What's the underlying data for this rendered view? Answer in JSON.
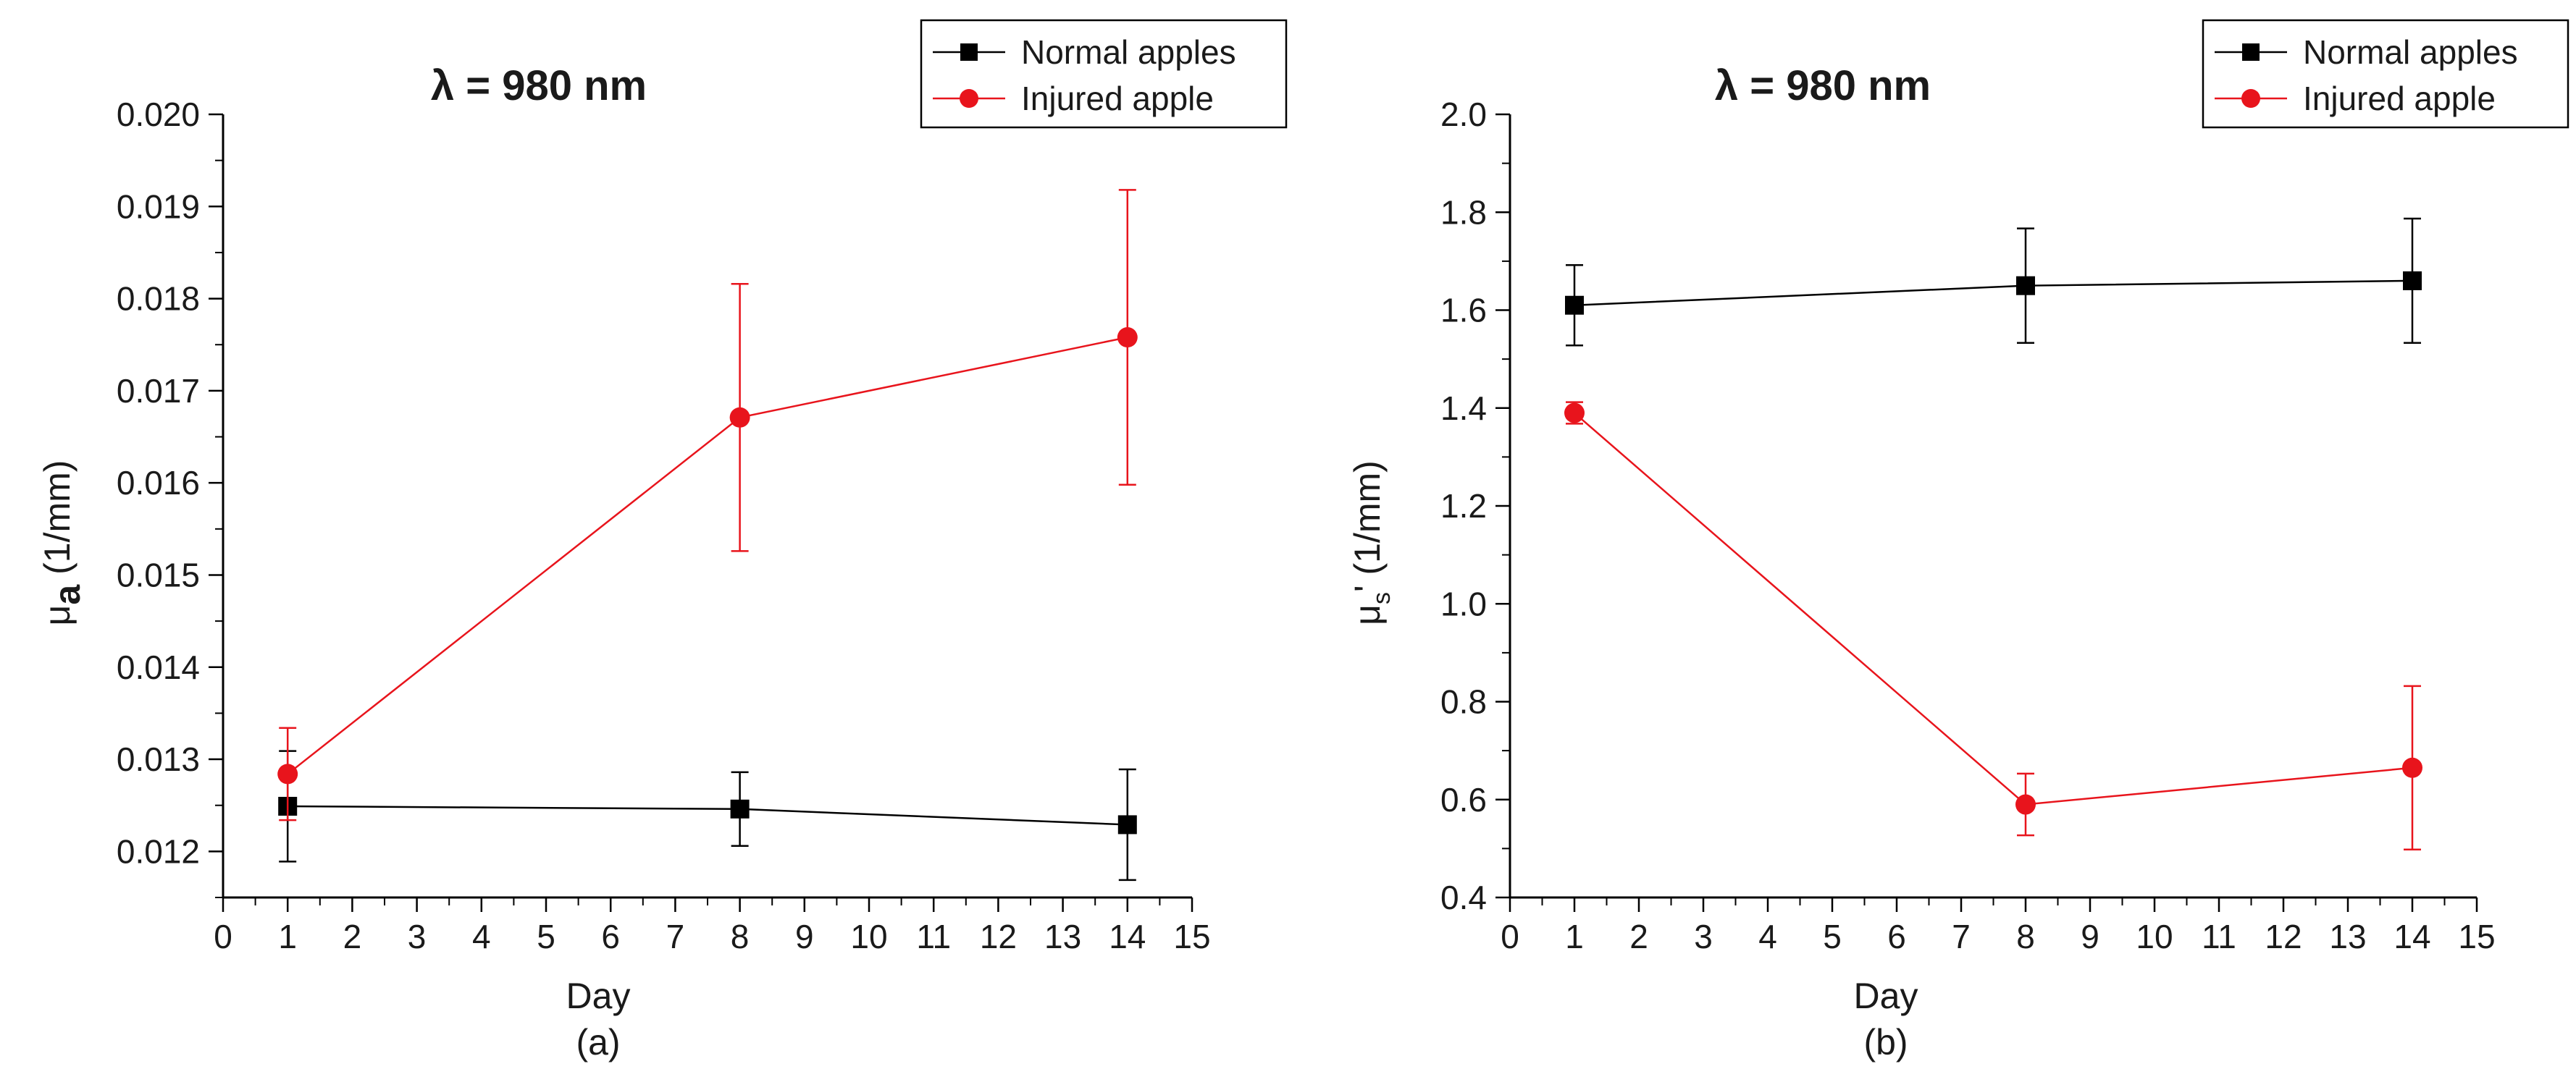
{
  "chart_data": [
    {
      "type": "line",
      "panel_label": "(a)",
      "title": "λ = 980 nm",
      "xlabel": "Day",
      "ylabel": {
        "main": "μ",
        "sub": "a",
        "unit": "(1/mm)"
      },
      "xlim": [
        0,
        15
      ],
      "ylim": [
        0.0115,
        0.02
      ],
      "xticks": [
        "0",
        "1",
        "2",
        "3",
        "4",
        "5",
        "6",
        "7",
        "8",
        "9",
        "10",
        "11",
        "12",
        "13",
        "14",
        "15"
      ],
      "yticks": [
        "0.012",
        "0.013",
        "0.014",
        "0.015",
        "0.016",
        "0.017",
        "0.018",
        "0.019",
        "0.020"
      ],
      "grid": false,
      "legend_position": "top-right",
      "x": [
        1,
        8,
        14
      ],
      "series": [
        {
          "name": "Normal apples",
          "color": "#000000",
          "marker": "square",
          "values": [
            0.01249,
            0.01246,
            0.01229
          ],
          "error": [
            0.0006,
            0.0004,
            0.0006
          ]
        },
        {
          "name": "Injured apple",
          "color": "#e8141c",
          "marker": "circle",
          "values": [
            0.01284,
            0.01671,
            0.01758
          ],
          "error": [
            0.0005,
            0.00145,
            0.0016
          ]
        }
      ]
    },
    {
      "type": "line",
      "panel_label": "(b)",
      "title": "λ = 980 nm",
      "xlabel": "Day",
      "ylabel": {
        "main": "μ",
        "sub": "s",
        "prime": "'",
        "unit": "(1/mm)"
      },
      "xlim": [
        0,
        15
      ],
      "ylim": [
        0.4,
        2.0
      ],
      "xticks": [
        "0",
        "1",
        "2",
        "3",
        "4",
        "5",
        "6",
        "7",
        "8",
        "9",
        "10",
        "11",
        "12",
        "13",
        "14",
        "15"
      ],
      "yticks": [
        "0.4",
        "0.6",
        "0.8",
        "1.0",
        "1.2",
        "1.4",
        "1.6",
        "1.8",
        "2.0"
      ],
      "grid": false,
      "legend_position": "top-right",
      "x": [
        1,
        8,
        14
      ],
      "series": [
        {
          "name": "Normal apples",
          "color": "#000000",
          "marker": "square",
          "values": [
            1.61,
            1.65,
            1.66
          ],
          "error": [
            0.082,
            0.117,
            0.127
          ]
        },
        {
          "name": "Injured apple",
          "color": "#e8141c",
          "marker": "circle",
          "values": [
            1.39,
            0.59,
            0.665
          ],
          "error": [
            0.022,
            0.063,
            0.167
          ]
        }
      ]
    }
  ]
}
